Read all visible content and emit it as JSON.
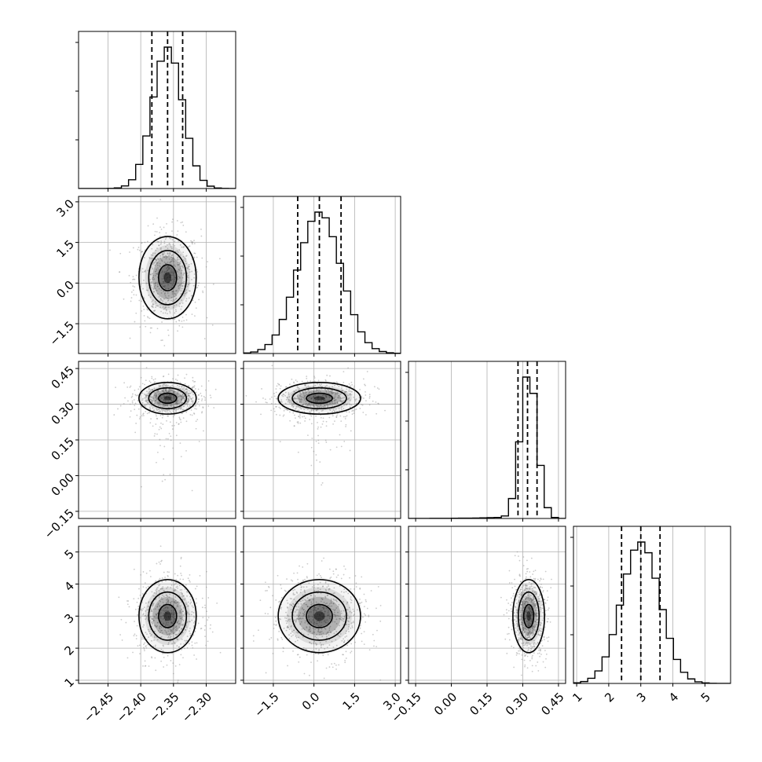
{
  "chart_data": {
    "type": "corner",
    "parameters": [
      {
        "range": [
          -2.495,
          -2.255
        ],
        "ticks": [
          -2.45,
          -2.4,
          -2.35,
          -2.3
        ],
        "tick_labels": [
          "−2.45",
          "−2.40",
          "−2.35",
          "−2.30"
        ],
        "quantiles": [
          -2.383,
          -2.359,
          -2.336
        ],
        "center": -2.359,
        "sd": 0.023
      },
      {
        "range": [
          -2.6,
          3.2
        ],
        "ticks": [
          -1.5,
          0.0,
          1.5,
          3.0
        ],
        "tick_labels": [
          "−1.5",
          "0.0",
          "1.5",
          "3.0"
        ],
        "quantiles": [
          -0.6,
          0.2,
          1.0
        ],
        "center": 0.2,
        "sd": 0.8
      },
      {
        "range": [
          -0.18,
          0.48
        ],
        "ticks": [
          -0.15,
          0.0,
          0.15,
          0.3,
          0.45
        ],
        "tick_labels": [
          "−0.15",
          "0.00",
          "0.15",
          "0.30",
          "0.45"
        ],
        "quantiles": [
          0.28,
          0.32,
          0.36
        ],
        "center": 0.325,
        "sd": 0.035
      },
      {
        "range": [
          0.9,
          5.8
        ],
        "ticks": [
          1,
          2,
          3,
          4,
          5
        ],
        "tick_labels": [
          "1",
          "2",
          "3",
          "4",
          "5"
        ],
        "quantiles": [
          2.4,
          3.0,
          3.6
        ],
        "center": 3.0,
        "sd": 0.6
      }
    ],
    "grid": true,
    "quantile_line_style": "dashed",
    "contour_levels": 3,
    "colors": {
      "hist": "#000000",
      "quantile": "#000000",
      "grid": "#b0b0b0",
      "points": "#8c8c8c",
      "density": "#000000"
    }
  }
}
